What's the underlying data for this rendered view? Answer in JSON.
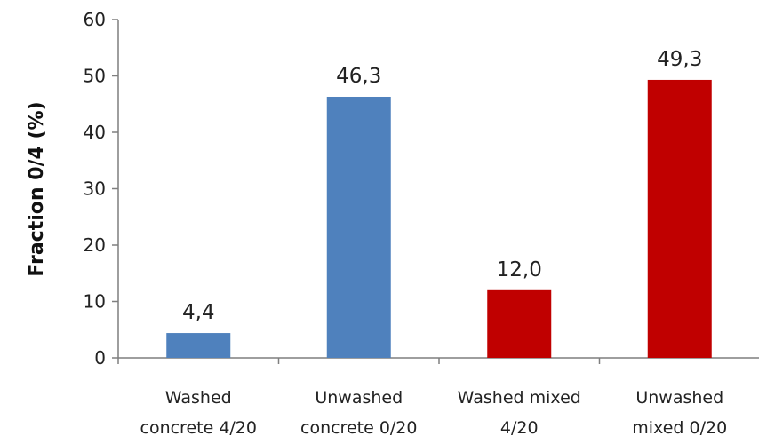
{
  "chart_data": {
    "type": "bar",
    "ylabel": "Fraction 0/4 (%)",
    "xlabel": "",
    "title": "",
    "ylim": [
      0,
      60
    ],
    "y_ticks": [
      0,
      10,
      20,
      30,
      40,
      50,
      60
    ],
    "grid": false,
    "legend": "none",
    "categories": [
      [
        "Washed",
        "concrete 4/20"
      ],
      [
        "Unwashed",
        "concrete 0/20"
      ],
      [
        "Washed mixed",
        "4/20"
      ],
      [
        "Unwashed",
        "mixed 0/20"
      ]
    ],
    "values": [
      4.4,
      46.3,
      12.0,
      49.3
    ],
    "value_labels": [
      "4,4",
      "46,3",
      "12,0",
      "49,3"
    ],
    "colors": [
      "#4f81bd",
      "#4f81bd",
      "#c00000",
      "#c00000"
    ],
    "axis_color": "#7f7f7f"
  }
}
